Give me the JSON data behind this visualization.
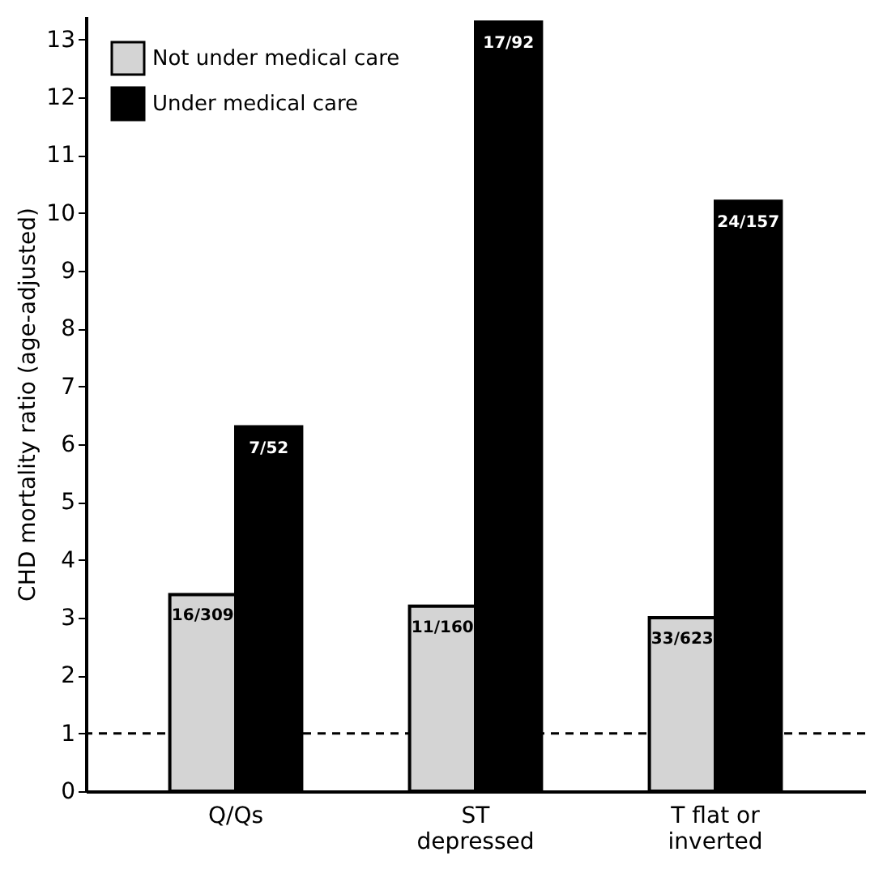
{
  "chart_data": {
    "type": "bar",
    "ylabel": "CHD mortality ratio (age-adjusted)",
    "categories": [
      "Q/Qs",
      "ST\ndepressed",
      "T flat or\ninverted"
    ],
    "series": [
      {
        "name": "Not under medical care",
        "color": "#d4d4d4",
        "values": [
          3.4,
          3.2,
          3.0
        ],
        "value_labels": [
          "16/309",
          "11/160",
          "33/623"
        ]
      },
      {
        "name": "Under medical care",
        "color": "#000000",
        "values": [
          6.3,
          13.3,
          10.2
        ],
        "value_labels": [
          "7/52",
          "17/92",
          "24/157"
        ]
      }
    ],
    "ylim": [
      0,
      13.4
    ],
    "yticks": [
      0,
      1,
      2,
      3,
      4,
      5,
      6,
      7,
      8,
      9,
      10,
      11,
      12,
      13
    ],
    "ref_lines": [
      {
        "axis": "y",
        "value": 1,
        "line_style": "dashed",
        "color": "#000000"
      }
    ],
    "legend": "top left",
    "grid": false
  }
}
